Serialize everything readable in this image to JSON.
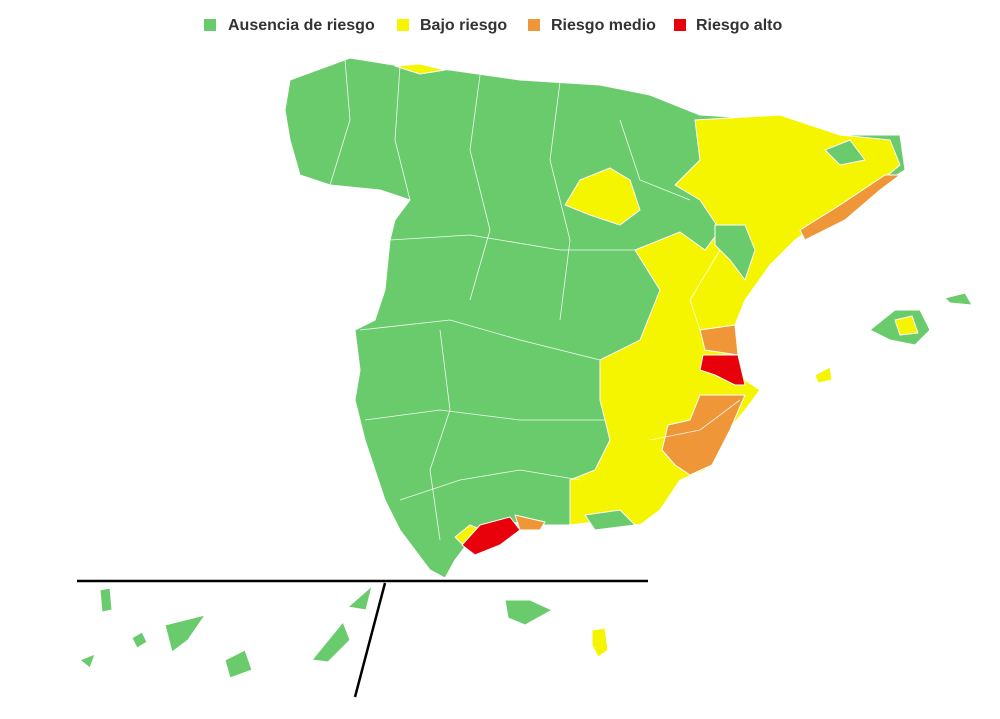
{
  "legend": [
    {
      "name": "Ausencia de riesgo",
      "color": "#6acb6c"
    },
    {
      "name": "Bajo riesgo",
      "color": "#f5f500"
    },
    {
      "name": "Riesgo medio",
      "color": "#ef9638"
    },
    {
      "name": "Riesgo alto",
      "color": "#e8000b"
    }
  ]
}
